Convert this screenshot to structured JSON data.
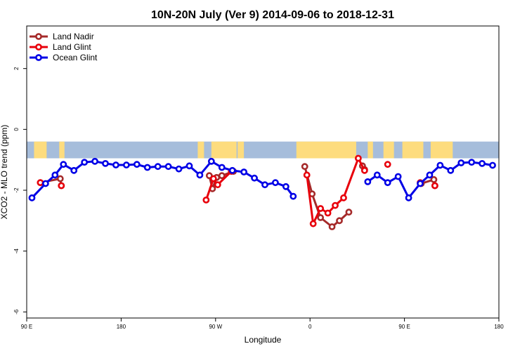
{
  "chart_data": {
    "type": "line",
    "title": "10N-20N July (Ver 9)   2014-09-06 to 2018-12-31",
    "xlabel": "Longitude",
    "ylabel": "XCO2 - MLO trend (ppm)",
    "xlim": [
      90,
      540
    ],
    "ylim": [
      -6.2,
      3.4
    ],
    "x_ticks": [
      {
        "value": 90,
        "label": "90 E"
      },
      {
        "value": 180,
        "label": "180"
      },
      {
        "value": 270,
        "label": "90 W"
      },
      {
        "value": 360,
        "label": "0"
      },
      {
        "value": 450,
        "label": "90 E"
      },
      {
        "value": 540,
        "label": "180"
      }
    ],
    "y_ticks": [
      {
        "value": 2,
        "label": "2"
      },
      {
        "value": 0,
        "label": "0"
      },
      {
        "value": -2,
        "label": "-2"
      },
      {
        "value": -4,
        "label": "-4"
      },
      {
        "value": -6,
        "label": "-6"
      }
    ],
    "land_band": {
      "ymin": -0.95,
      "ymax": -0.4,
      "ocean_color": "#a6bddb",
      "land_color": "#fddc7e"
    },
    "land_spans": [
      [
        97,
        109
      ],
      [
        121,
        126
      ],
      [
        253,
        259
      ],
      [
        266,
        290
      ],
      [
        291,
        297
      ],
      [
        347,
        404
      ],
      [
        415,
        420
      ],
      [
        430,
        440
      ],
      [
        448,
        468
      ],
      [
        475,
        496
      ]
    ],
    "legend": {
      "position": "top-left"
    },
    "series": [
      {
        "name": "Land Nadir",
        "color": "#a52a2a",
        "segments": [
          [
            [
              103,
              -1.75
            ],
            [
              122,
              -1.62
            ],
            [
              123,
              -1.85
            ]
          ],
          [
            [
              264,
              -1.52
            ],
            [
              267,
              -1.95
            ],
            [
              271,
              -1.58
            ],
            [
              276,
              -1.52
            ],
            [
              287,
              -1.38
            ]
          ],
          [
            [
              355,
              -1.22
            ],
            [
              362,
              -2.12
            ],
            [
              370,
              -2.9
            ],
            [
              381,
              -3.2
            ],
            [
              388,
              -3.0
            ],
            [
              397,
              -2.72
            ]
          ],
          [
            [
              410,
              -1.2
            ],
            [
              412,
              -1.32
            ]
          ],
          [
            [
              466,
              -1.78
            ],
            [
              478,
              -1.65
            ],
            [
              479,
              -1.85
            ]
          ]
        ]
      },
      {
        "name": "Land Glint",
        "color": "#e8000b",
        "segments": [
          [
            [
              103,
              -1.75
            ]
          ],
          [
            [
              123,
              -1.85
            ]
          ],
          [
            [
              261,
              -2.32
            ],
            [
              268,
              -1.62
            ],
            [
              272,
              -1.82
            ],
            [
              285,
              -1.38
            ]
          ],
          [
            [
              357,
              -1.5
            ],
            [
              363,
              -3.1
            ],
            [
              370,
              -2.6
            ],
            [
              377,
              -2.75
            ],
            [
              384,
              -2.5
            ],
            [
              392,
              -2.25
            ],
            [
              406,
              -0.95
            ],
            [
              412,
              -1.35
            ]
          ],
          [
            [
              434,
              -1.15
            ]
          ],
          [
            [
              465,
              -1.75
            ]
          ],
          [
            [
              479,
              -1.85
            ]
          ]
        ]
      },
      {
        "name": "Ocean Glint",
        "color": "#0000e6",
        "segments": [
          [
            [
              95,
              -2.25
            ],
            [
              108,
              -1.78
            ],
            [
              117,
              -1.5
            ],
            [
              125,
              -1.15
            ],
            [
              135,
              -1.35
            ],
            [
              145,
              -1.08
            ],
            [
              155,
              -1.05
            ],
            [
              165,
              -1.12
            ],
            [
              175,
              -1.17
            ],
            [
              185,
              -1.17
            ],
            [
              195,
              -1.15
            ],
            [
              205,
              -1.25
            ],
            [
              215,
              -1.22
            ],
            [
              225,
              -1.22
            ],
            [
              235,
              -1.3
            ],
            [
              245,
              -1.2
            ],
            [
              255,
              -1.5
            ],
            [
              266,
              -1.05
            ],
            [
              276,
              -1.25
            ],
            [
              286,
              -1.35
            ],
            [
              297,
              -1.4
            ],
            [
              307,
              -1.6
            ],
            [
              317,
              -1.82
            ],
            [
              327,
              -1.75
            ],
            [
              337,
              -1.88
            ],
            [
              344,
              -2.2
            ]
          ],
          [
            [
              415,
              -1.72
            ],
            [
              424,
              -1.5
            ],
            [
              434,
              -1.75
            ],
            [
              444,
              -1.55
            ],
            [
              454,
              -2.25
            ],
            [
              465,
              -1.78
            ],
            [
              474,
              -1.5
            ],
            [
              484,
              -1.18
            ],
            [
              494,
              -1.35
            ],
            [
              504,
              -1.1
            ],
            [
              514,
              -1.08
            ],
            [
              524,
              -1.12
            ],
            [
              534,
              -1.18
            ]
          ]
        ]
      }
    ]
  }
}
